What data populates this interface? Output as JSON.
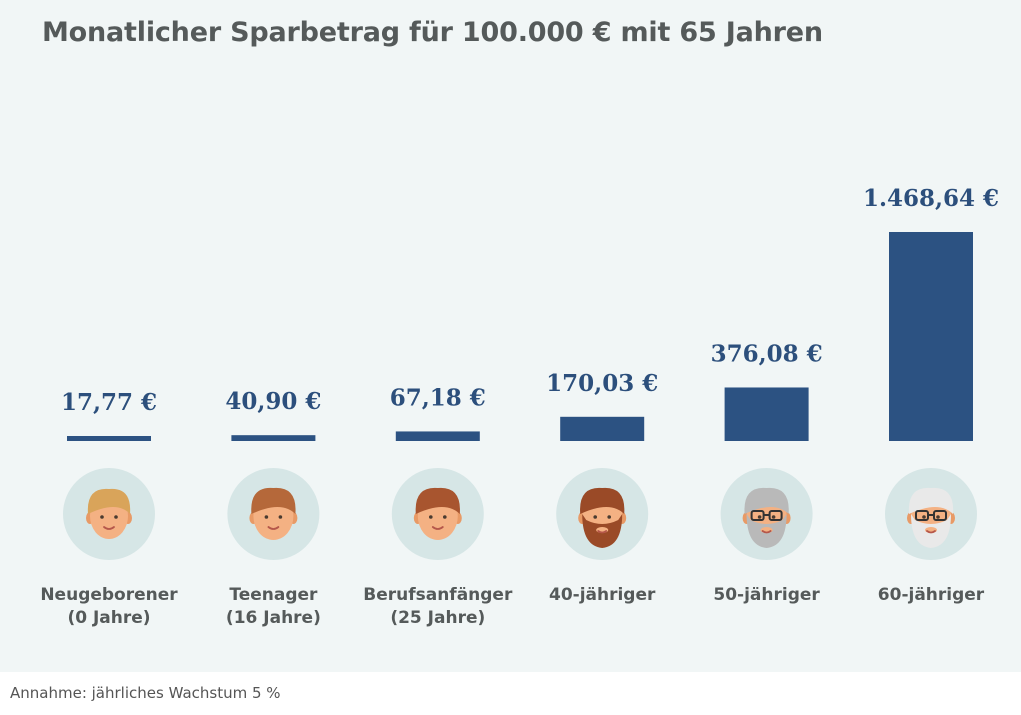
{
  "title": "Monatlicher Sparbetrag für 100.000 € mit 65 Jahren",
  "footnote": "Annahme: jährliches Wachstum 5 %",
  "colors": {
    "bar": "#2c5282",
    "background": "#f1f6f6",
    "avatar_circle": "#d6e6e6"
  },
  "chart_data": {
    "type": "bar",
    "categories": [
      [
        "Neugeborener",
        "(0 Jahre)"
      ],
      [
        "Teenager",
        "(16 Jahre)"
      ],
      [
        "Berufsanfänger",
        "(25 Jahre)"
      ],
      [
        "40-jähriger"
      ],
      [
        "50-jähriger"
      ],
      [
        "60-jähriger"
      ]
    ],
    "values": [
      17.77,
      40.9,
      67.18,
      170.03,
      376.08,
      1468.64
    ],
    "value_labels": [
      "17,77 €",
      "40,90 €",
      "67,18 €",
      "170,03 €",
      "376,08 €",
      "1.468,64 €"
    ],
    "ylim": [
      0,
      1468.64
    ],
    "grid": false,
    "legend": "none"
  },
  "avatars": [
    {
      "icon": "baby-face-icon",
      "hair": "#d9a45a",
      "beard": null,
      "glasses": false
    },
    {
      "icon": "teen-face-icon",
      "hair": "#b5683a",
      "beard": null,
      "glasses": false
    },
    {
      "icon": "young-adult-face-icon",
      "hair": "#a8552f",
      "beard": null,
      "glasses": false
    },
    {
      "icon": "man-40-face-icon",
      "hair": "#9a4a27",
      "beard": "#9a4a27",
      "glasses": false
    },
    {
      "icon": "man-50-face-icon",
      "hair": "#b9b9b9",
      "beard": "#b9b9b9",
      "glasses": true
    },
    {
      "icon": "man-60-face-icon",
      "hair": "#e9e9e9",
      "beard": "#e9e9e9",
      "glasses": true
    }
  ]
}
